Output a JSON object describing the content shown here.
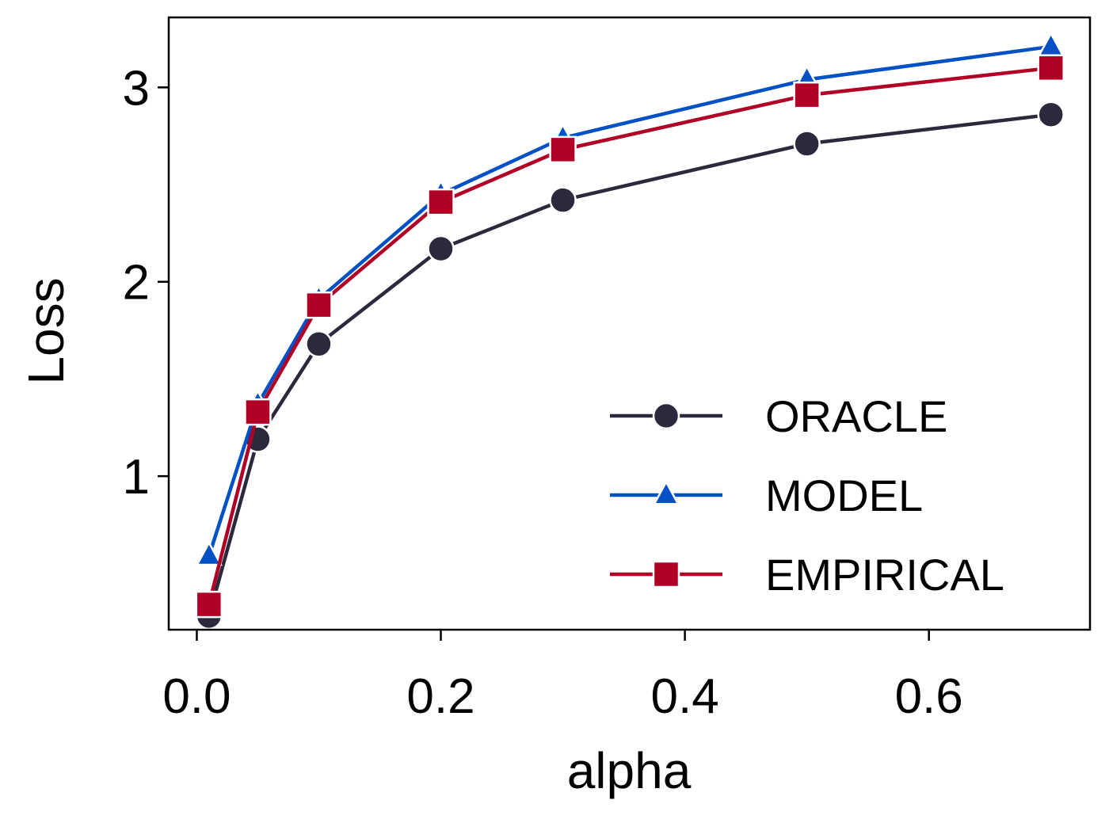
{
  "chart_data": {
    "type": "line",
    "title": "",
    "xlabel": "alpha",
    "ylabel": "Loss",
    "xlim": [
      -0.023,
      0.732
    ],
    "ylim": [
      0.21,
      3.36
    ],
    "xticks": [
      0.0,
      0.2,
      0.4,
      0.6
    ],
    "xtick_labels": [
      "0.0",
      "0.2",
      "0.4",
      "0.6"
    ],
    "yticks": [
      1,
      2,
      3
    ],
    "ytick_labels": [
      "1",
      "2",
      "3"
    ],
    "grid": false,
    "legend_position": "lower-right",
    "x": [
      0.01,
      0.05,
      0.1,
      0.2,
      0.3,
      0.5,
      0.7
    ],
    "series": [
      {
        "name": "ORACLE",
        "marker": "circle",
        "color": "#2b2a3d",
        "values": [
          0.28,
          1.19,
          1.68,
          2.17,
          2.42,
          2.71,
          2.86
        ]
      },
      {
        "name": "MODEL",
        "marker": "triangle",
        "color": "#0051c5",
        "values": [
          0.59,
          1.37,
          1.91,
          2.45,
          2.74,
          3.04,
          3.21
        ]
      },
      {
        "name": "EMPIRICAL",
        "marker": "square",
        "color": "#b10026",
        "values": [
          0.34,
          1.33,
          1.88,
          2.41,
          2.68,
          2.96,
          3.1
        ]
      }
    ]
  }
}
